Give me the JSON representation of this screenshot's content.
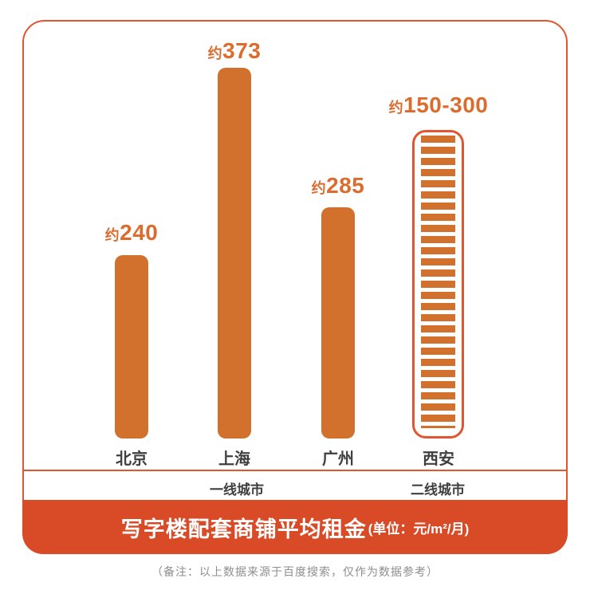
{
  "title": {
    "main": "写字楼配套商铺平均租金",
    "unit": "(单位：元/m²/月)"
  },
  "note": {
    "text": "（备注：以上数据来源于百度搜索，仅作为数据参考）"
  },
  "groups": [
    {
      "label": "一线城市"
    },
    {
      "label": "二线城市"
    }
  ],
  "bars": [
    {
      "city": "北京",
      "approx": "约",
      "value_label": "240",
      "group": "一线城市",
      "style": "solid"
    },
    {
      "city": "上海",
      "approx": "约",
      "value_label": "373",
      "group": "一线城市",
      "style": "solid"
    },
    {
      "city": "广州",
      "approx": "约",
      "value_label": "285",
      "group": "一线城市",
      "style": "solid"
    },
    {
      "city": "西安",
      "approx": "约",
      "value_label": "150-300",
      "group": "二线城市",
      "style": "striped-outline"
    }
  ],
  "colors": {
    "bar_orange": "#d2712e",
    "accent_red_orange": "#e2552f",
    "banner_background": "#d94b27",
    "value_text": "#dc6c2e",
    "label_text": "#3f3f3f",
    "note_text": "#8e8e8e"
  },
  "chart_data": {
    "type": "bar",
    "title": "写字楼配套商铺平均租金",
    "unit": "元/m²/月",
    "categories": [
      "北京",
      "上海",
      "广州",
      "西安"
    ],
    "values": [
      240,
      373,
      285,
      [
        150,
        300
      ]
    ],
    "value_labels": [
      "约240",
      "约373",
      "约285",
      "约150-300"
    ],
    "groups": [
      {
        "label": "一线城市",
        "categories": [
          "北京",
          "上海",
          "广州"
        ]
      },
      {
        "label": "二线城市",
        "categories": [
          "西安"
        ]
      }
    ],
    "bar_styles": [
      "solid",
      "solid",
      "solid",
      "striped-outline"
    ],
    "legend": "none",
    "grid": false,
    "note": "以上数据来源于百度搜索，仅作为数据参考"
  }
}
